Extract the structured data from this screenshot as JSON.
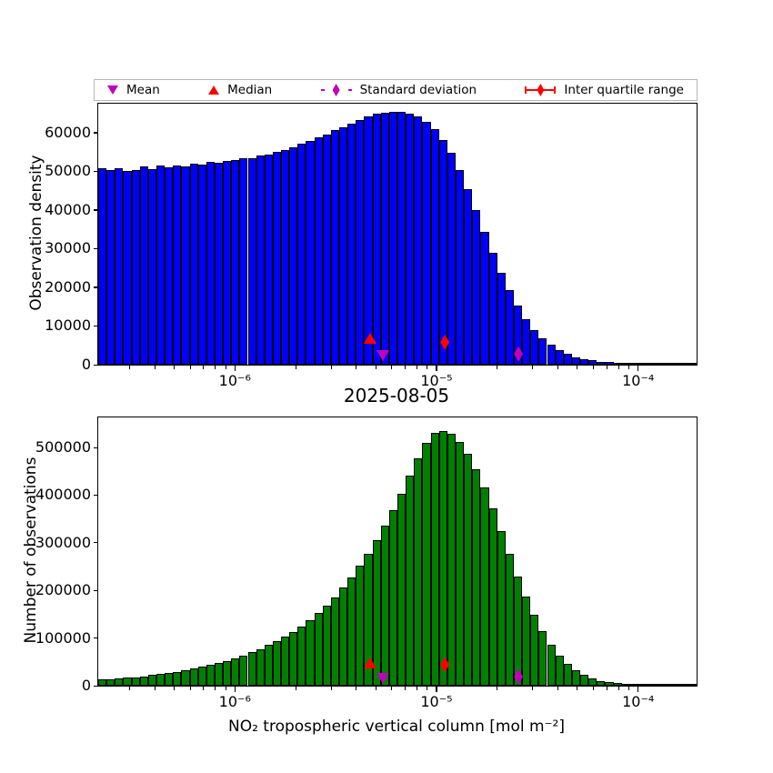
{
  "figure": {
    "title": "2025-08-05",
    "background": "#ffffff"
  },
  "legend": {
    "items": [
      {
        "label": "Mean",
        "marker": "triangle-down",
        "color": "#BF00BF"
      },
      {
        "label": "Median",
        "marker": "triangle-up",
        "color": "#FF0000"
      },
      {
        "label": "Standard deviation",
        "marker": "thin-diamond-dashed-line",
        "color": "#BF00BF"
      },
      {
        "label": "Inter quartile range",
        "marker": "thin-diamond-solid-line",
        "color": "#FF0000"
      }
    ]
  },
  "chart_data": [
    {
      "type": "bar",
      "name": "observation-density-histogram",
      "ylabel": "Observation density",
      "xlabel": "",
      "x_scale": "log",
      "xlim": [
        2.1e-07,
        0.000195
      ],
      "ylim": [
        0,
        67500
      ],
      "yticks": [
        0,
        10000,
        20000,
        30000,
        40000,
        50000,
        60000
      ],
      "xticks": [
        {
          "value": 1e-06,
          "label": "10⁻⁶"
        },
        {
          "value": 1e-05,
          "label": "10⁻⁵"
        },
        {
          "value": 0.0001,
          "label": "10⁻⁴"
        }
      ],
      "bar_color": "#0000FF",
      "bar_edge_color": "#000000",
      "grid": false,
      "values": [
        50900,
        50300,
        50700,
        50100,
        50400,
        51200,
        50600,
        51500,
        51100,
        51600,
        51300,
        52000,
        51800,
        52400,
        52100,
        52800,
        53000,
        53400,
        53300,
        54100,
        54300,
        55000,
        55600,
        56300,
        57100,
        57800,
        58700,
        59600,
        60600,
        61500,
        62400,
        63300,
        64100,
        64800,
        65200,
        65400,
        65300,
        64900,
        64100,
        62800,
        60900,
        58200,
        54700,
        50400,
        45400,
        40000,
        34400,
        28900,
        23800,
        19200,
        15200,
        11800,
        9000,
        6800,
        5100,
        3800,
        2800,
        2000,
        1500,
        1100,
        800,
        600,
        450,
        340,
        260,
        200,
        150,
        110,
        80,
        60,
        40,
        30
      ],
      "markers": [
        {
          "name": "median",
          "x": 4.7e-06,
          "y": 5800,
          "shape": "triangle-up",
          "color": "#FF0000"
        },
        {
          "name": "mean",
          "x": 5.4e-06,
          "y": 3200,
          "shape": "triangle-down",
          "color": "#BF00BF"
        },
        {
          "name": "inter-quartile-range",
          "x": 1.1e-05,
          "y": 5900,
          "shape": "thin-diamond",
          "color": "#FF0000"
        },
        {
          "name": "standard-deviation",
          "x": 2.55e-05,
          "y": 2900,
          "shape": "thin-diamond",
          "color": "#BF00BF"
        }
      ]
    },
    {
      "type": "bar",
      "name": "number-of-observations-histogram",
      "ylabel": "Number of observations",
      "xlabel": "NO₂ tropospheric vertical column [mol m⁻²]",
      "x_scale": "log",
      "xlim": [
        2.1e-07,
        0.000195
      ],
      "ylim": [
        0,
        563000
      ],
      "yticks": [
        0,
        100000,
        200000,
        300000,
        400000,
        500000
      ],
      "xticks": [
        {
          "value": 1e-06,
          "label": "10⁻⁶"
        },
        {
          "value": 1e-05,
          "label": "10⁻⁵"
        },
        {
          "value": 0.0001,
          "label": "10⁻⁴"
        }
      ],
      "bar_color": "#008000",
      "bar_edge_color": "#000000",
      "grid": false,
      "values": [
        12500,
        13500,
        15000,
        16500,
        18000,
        20000,
        22000,
        24500,
        27000,
        29500,
        32500,
        36000,
        39500,
        43500,
        48000,
        52500,
        58000,
        63500,
        70000,
        77000,
        85000,
        93500,
        103000,
        113500,
        125000,
        138000,
        152500,
        168500,
        186000,
        206000,
        227500,
        251500,
        277500,
        306000,
        336500,
        369000,
        403000,
        441000,
        478000,
        510000,
        530000,
        534000,
        528000,
        512000,
        487000,
        455000,
        416000,
        372000,
        325000,
        277000,
        230000,
        187000,
        148000,
        114000,
        86000,
        63000,
        45500,
        32000,
        22000,
        15000,
        10300,
        7100,
        5000,
        3600,
        2700,
        2100,
        1700,
        1400,
        1200,
        1000,
        900,
        850
      ],
      "markers": [
        {
          "name": "median",
          "x": 4.7e-06,
          "y": 40000,
          "shape": "triangle-up",
          "color": "#FF0000"
        },
        {
          "name": "mean",
          "x": 5.4e-06,
          "y": 22000,
          "shape": "triangle-down",
          "color": "#BF00BF"
        },
        {
          "name": "inter-quartile-range",
          "x": 1.1e-05,
          "y": 45000,
          "shape": "thin-diamond",
          "color": "#FF0000"
        },
        {
          "name": "standard-deviation",
          "x": 2.55e-05,
          "y": 20000,
          "shape": "thin-diamond",
          "color": "#BF00BF"
        }
      ]
    }
  ]
}
